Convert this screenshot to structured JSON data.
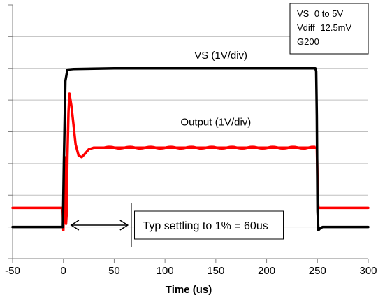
{
  "chart_data": {
    "type": "line",
    "xlabel": "Time (us)",
    "x_ticks": [
      -50,
      0,
      50,
      100,
      150,
      200,
      250,
      300
    ],
    "xlim": [
      -50,
      300
    ],
    "y_divisions": 7,
    "grid": "horizontal",
    "conditions": [
      "VS=0 to 5V",
      "Vdiff=12.5mV",
      "G200"
    ],
    "series": [
      {
        "name": "VS (1V/div)",
        "color": "#000000",
        "x": [
          -50,
          -0.5,
          0.5,
          2,
          4,
          10,
          50,
          150,
          248,
          248.8,
          249.4,
          250.1,
          251,
          252.5,
          255,
          300
        ],
        "y": [
          0,
          0,
          2.0,
          4.6,
          4.96,
          4.98,
          5.0,
          5.0,
          5.0,
          4.9,
          3.5,
          0.5,
          -0.1,
          -0.05,
          0,
          0
        ]
      },
      {
        "name": "Output (1V/div)",
        "color": "#ff0000",
        "x": [
          -50,
          -0.8,
          0,
          0.6,
          1.2,
          2,
          2.6,
          3.2,
          4,
          5,
          6,
          8,
          10,
          12,
          15,
          18,
          21,
          25,
          30,
          35,
          40,
          50,
          100,
          150,
          200,
          249.4,
          249.9,
          250.3,
          251,
          255,
          300
        ],
        "y": [
          0.6,
          0.6,
          -0.1,
          0.8,
          2.2,
          1.2,
          0.1,
          0.4,
          2.2,
          3.6,
          4.2,
          3.8,
          3.2,
          2.6,
          2.25,
          2.2,
          2.3,
          2.45,
          2.5,
          2.5,
          2.5,
          2.5,
          2.5,
          2.5,
          2.5,
          2.5,
          1.8,
          0.9,
          0.6,
          0.6,
          0.6
        ]
      }
    ],
    "annotations": [
      {
        "text": "VS (1V/div)",
        "x": 155,
        "y": 5.3
      },
      {
        "text": "Output (1V/div)",
        "x": 150,
        "y": 3.2
      }
    ],
    "settling": {
      "label": "Typ settling to 1% = 60us",
      "from": 7,
      "to": 64
    }
  }
}
